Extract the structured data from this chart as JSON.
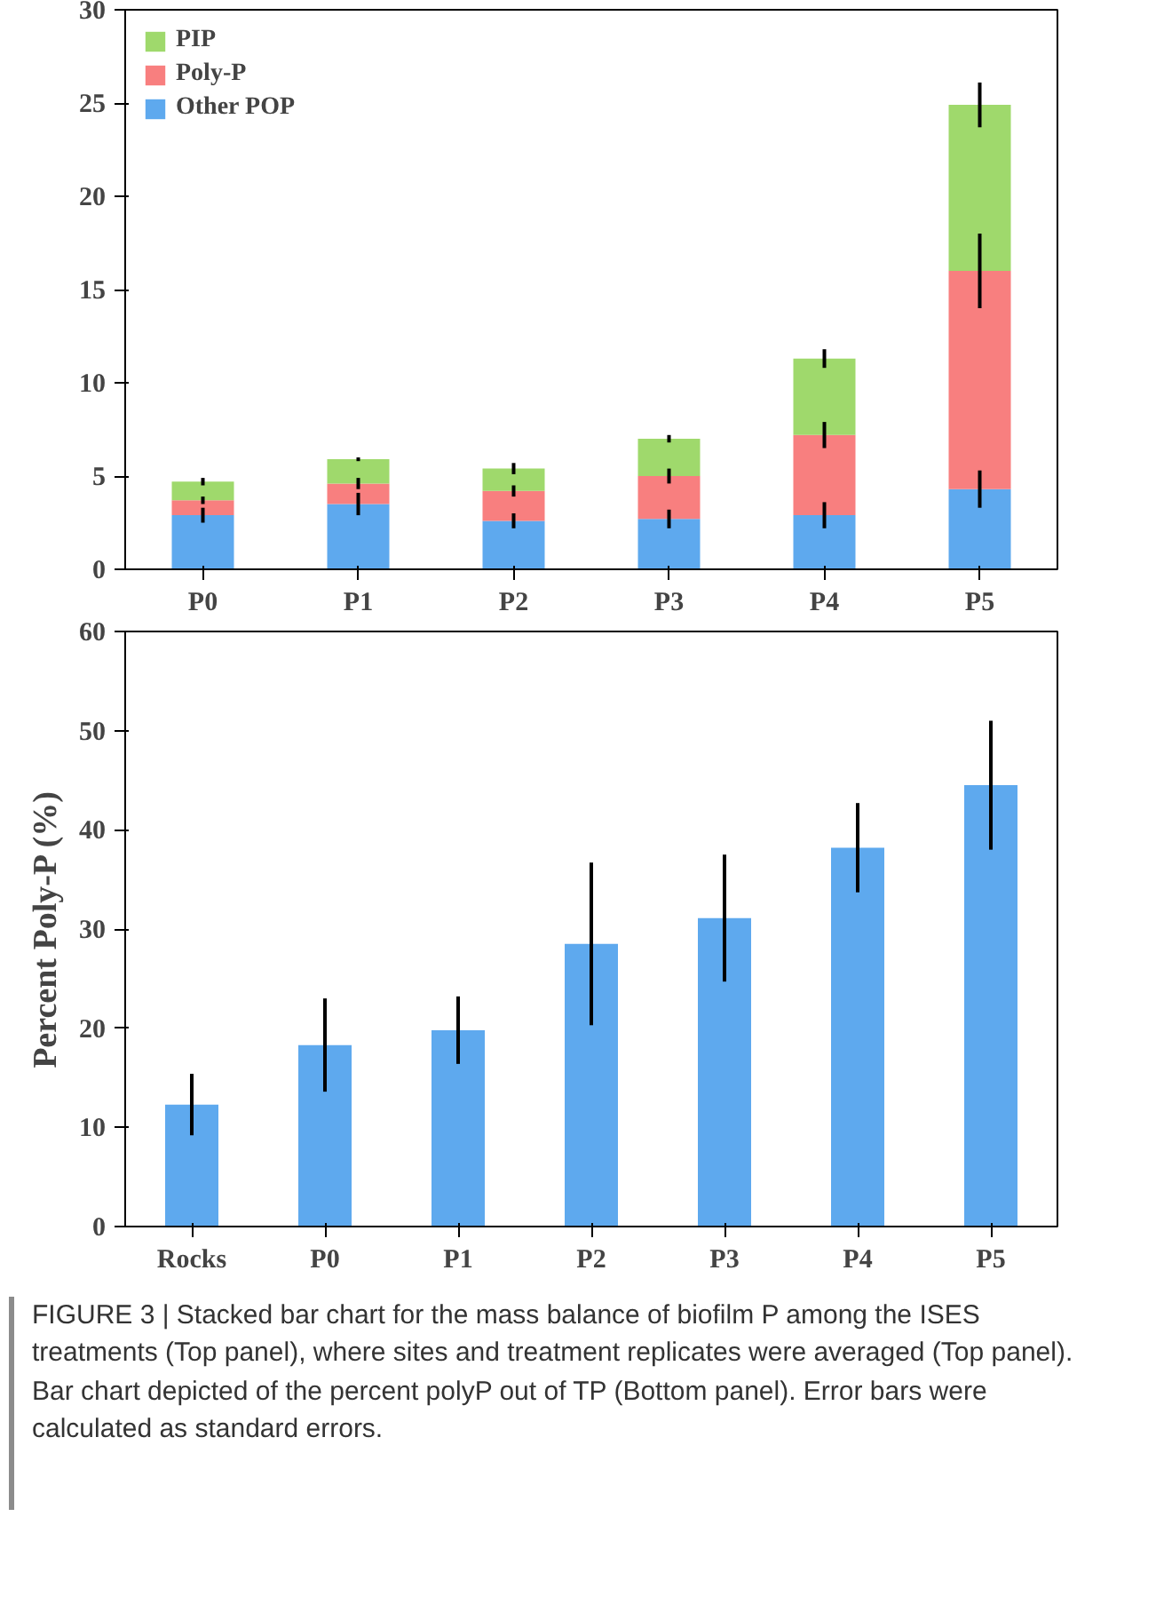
{
  "chart_data": [
    {
      "type": "bar",
      "stacked": true,
      "categories": [
        "P0",
        "P1",
        "P2",
        "P3",
        "P4",
        "P5"
      ],
      "ylim": [
        0,
        30
      ],
      "yticks": [
        0,
        5,
        10,
        15,
        20,
        25,
        30
      ],
      "grid": false,
      "legend": "top left",
      "series": [
        {
          "name": "Other POP",
          "color": "#5ea9ee",
          "values": [
            2.9,
            3.5,
            2.6,
            2.7,
            2.9,
            4.3
          ],
          "errors": [
            0.4,
            0.6,
            0.4,
            0.5,
            0.7,
            1.0
          ]
        },
        {
          "name": "Poly-P",
          "color": "#f87f7f",
          "values": [
            0.8,
            1.1,
            1.6,
            2.3,
            4.3,
            11.7
          ],
          "errors": [
            0.2,
            0.3,
            0.3,
            0.4,
            0.7,
            2.0
          ]
        },
        {
          "name": "PIP",
          "color": "#9fd96c",
          "values": [
            1.0,
            1.3,
            1.2,
            2.0,
            4.1,
            8.9
          ],
          "errors": [
            0.2,
            0.1,
            0.3,
            0.2,
            0.5,
            1.2
          ]
        }
      ]
    },
    {
      "type": "bar",
      "categories": [
        "Rocks",
        "P0",
        "P1",
        "P2",
        "P3",
        "P4",
        "P5"
      ],
      "ylabel": "Percent Poly-P (%)",
      "ylim": [
        0,
        60
      ],
      "yticks": [
        0,
        10,
        20,
        30,
        40,
        50,
        60
      ],
      "grid": false,
      "series": [
        {
          "color": "#5ea9ee",
          "values": [
            12.3,
            18.3,
            19.8,
            28.5,
            31.1,
            38.2,
            44.5
          ],
          "errors": [
            3.1,
            4.7,
            3.4,
            8.2,
            6.4,
            4.5,
            6.5
          ]
        }
      ],
      "annotations": [
        "FIGURE 3 | Stacked bar chart for the mass balance of biofilm P among the ISES treatments (Top panel), where sites and treatment replicates were averaged (Top panel). Bar chart depicted of the percent polyP out of TP (Bottom panel). Error bars were calculated as standard errors."
      ]
    }
  ]
}
